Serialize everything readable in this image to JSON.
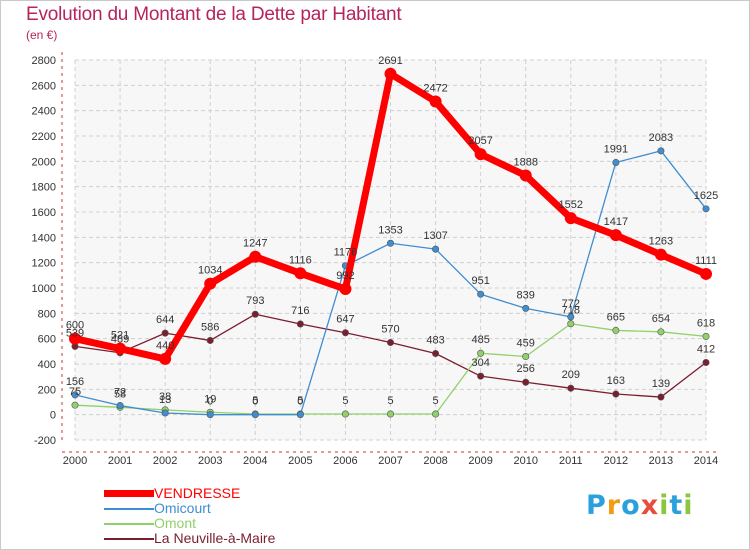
{
  "header": {
    "title": "Evolution du Montant de la Dette par Habitant",
    "subtitle": "(en €)"
  },
  "logo": {
    "letters": [
      "P",
      "r",
      "o",
      "x",
      "i",
      "t",
      "i"
    ],
    "colors": [
      "#2aa1dc",
      "#f39c12",
      "#2aa1dc",
      "#e74c3c",
      "#8cc63f",
      "#2aa1dc",
      "#8cc63f"
    ]
  },
  "chart_data": {
    "type": "line",
    "title": "Evolution du Montant de la Dette par Habitant",
    "subtitle": "(en €)",
    "x": [
      "2000",
      "2001",
      "2002",
      "2003",
      "2004",
      "2005",
      "2006",
      "2007",
      "2008",
      "2009",
      "2010",
      "2011",
      "2012",
      "2013",
      "2014"
    ],
    "ylim": [
      -200,
      2800
    ],
    "yticks": [
      -200,
      0,
      200,
      400,
      600,
      800,
      1000,
      1200,
      1400,
      1600,
      1800,
      2000,
      2200,
      2400,
      2600,
      2800
    ],
    "grid": true,
    "legend_position": "bottom-left",
    "series": [
      {
        "name": "La Neuville-à-Maire",
        "color": "#7b1e2e",
        "values": [
          539,
          489,
          644,
          586,
          793,
          716,
          647,
          570,
          483,
          304,
          256,
          209,
          163,
          139,
          412
        ],
        "labels": [
          "539",
          "489",
          "644",
          "586",
          "793",
          "716",
          "647",
          "570",
          "483",
          "304",
          "256",
          "209",
          "163",
          "139",
          "412"
        ]
      },
      {
        "name": "Omont",
        "color": "#8fd16a",
        "values": [
          75,
          58,
          38,
          19,
          5,
          5,
          5,
          5,
          5,
          485,
          459,
          718,
          665,
          654,
          618
        ],
        "labels": [
          "75",
          "58",
          "38",
          "19",
          "5",
          "5",
          "5",
          "5",
          "5",
          "485",
          "459",
          "718",
          "665",
          "654",
          "618"
        ]
      },
      {
        "name": "Omicourt",
        "color": "#3f8ed1",
        "values": [
          156,
          72,
          13,
          0,
          0,
          0,
          1176,
          1353,
          1307,
          951,
          839,
          772,
          1991,
          2083,
          1625
        ],
        "labels": [
          "156",
          "72",
          "13",
          "0",
          "0",
          "0",
          "1176",
          "1353",
          "1307",
          "951",
          "839",
          "772",
          "1991",
          "2083",
          "1625"
        ]
      },
      {
        "name": "VENDRESSE",
        "color": "#ff0000",
        "values": [
          600,
          521,
          440,
          1034,
          1247,
          1116,
          992,
          2691,
          2472,
          2057,
          1888,
          1552,
          1417,
          1263,
          1111
        ],
        "labels": [
          "600",
          "521",
          "440",
          "1034",
          "1247",
          "1116",
          "992",
          "2691",
          "2472",
          "2057",
          "1888",
          "1552",
          "1417",
          "1263",
          "1111"
        ]
      }
    ]
  },
  "legend": [
    {
      "name": "VENDRESSE",
      "color": "#ff0000"
    },
    {
      "name": "Omicourt",
      "color": "#3f8ed1"
    },
    {
      "name": "Omont",
      "color": "#8fd16a"
    },
    {
      "name": "La Neuville-à-Maire",
      "color": "#7b1e2e"
    }
  ]
}
